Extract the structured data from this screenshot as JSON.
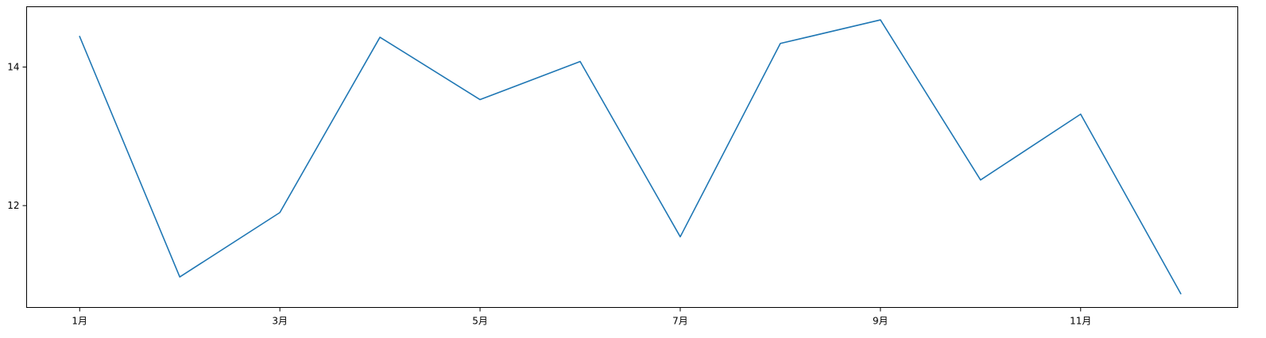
{
  "chart_data": {
    "type": "line",
    "x": [
      1,
      2,
      3,
      4,
      5,
      6,
      7,
      8,
      9,
      10,
      11,
      12
    ],
    "x_ticks": [
      1,
      3,
      5,
      7,
      9,
      11
    ],
    "x_tick_labels": [
      "1月",
      "3月",
      "5月",
      "7月",
      "9月",
      "11月"
    ],
    "series": [
      {
        "color": "#1f77b4",
        "values": [
          14.44,
          10.97,
          11.9,
          14.43,
          13.53,
          14.08,
          11.55,
          14.34,
          14.68,
          12.37,
          13.32,
          10.73
        ]
      }
    ],
    "y_ticks": [
      12,
      14
    ],
    "y_tick_labels": [
      "12",
      "14"
    ],
    "xlim": [
      0.47,
      12.57
    ],
    "ylim": [
      10.53,
      14.87
    ],
    "grid": false,
    "title": "",
    "xlabel": "",
    "ylabel": ""
  }
}
